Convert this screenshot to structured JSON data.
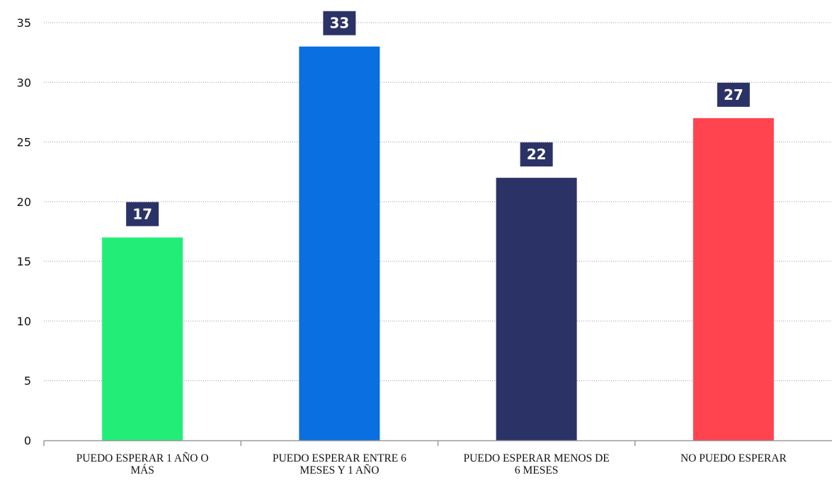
{
  "chart_data": {
    "type": "bar",
    "title": "",
    "xlabel": "",
    "ylabel": "",
    "ylim": [
      0,
      35
    ],
    "yticks": [
      0,
      5,
      10,
      15,
      20,
      25,
      30,
      35
    ],
    "grid": "horizontal-dotted",
    "legend": "none",
    "categories": [
      [
        "PUEDO ESPERAR 1 AÑO O",
        "MÁS"
      ],
      [
        "PUEDO ESPERAR ENTRE 6",
        "MESES Y 1 AÑO"
      ],
      [
        "PUEDO ESPERAR MENOS DE",
        "6 MESES"
      ],
      [
        "NO PUEDO ESPERAR"
      ]
    ],
    "values": [
      17,
      33,
      22,
      27
    ],
    "data_labels": [
      "17",
      "33",
      "22",
      "27"
    ],
    "colors": [
      "#22ee77",
      "#0a6fe0",
      "#2b3266",
      "#ff4450"
    ],
    "label_box_color": "#2b3266"
  }
}
